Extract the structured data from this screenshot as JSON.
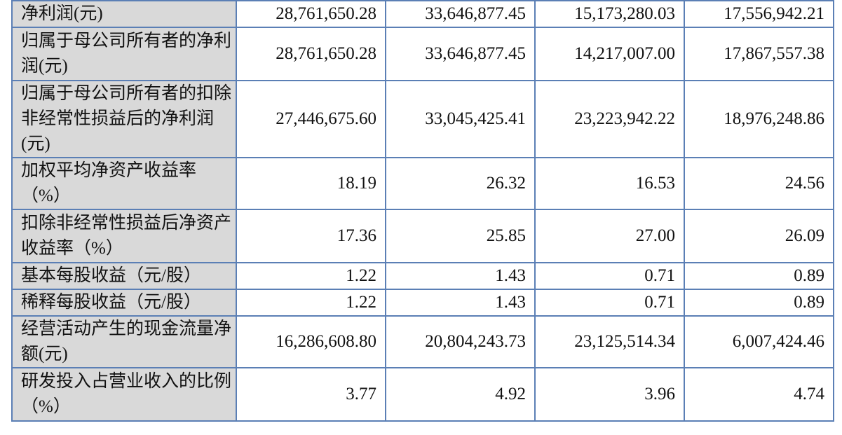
{
  "rows": [
    {
      "label": "净利润(元)",
      "values": [
        "28,761,650.28",
        "33,646,877.45",
        "15,173,280.03",
        "17,556,942.21"
      ]
    },
    {
      "label": "归属于母公司所有者的净利润(元)",
      "values": [
        "28,761,650.28",
        "33,646,877.45",
        "14,217,007.00",
        "17,867,557.38"
      ]
    },
    {
      "label": "归属于母公司所有者的扣除非经常性损益后的净利润(元)",
      "values": [
        "27,446,675.60",
        "33,045,425.41",
        "23,223,942.22",
        "18,976,248.86"
      ]
    },
    {
      "label": "加权平均净资产收益率（%）",
      "values": [
        "18.19",
        "26.32",
        "16.53",
        "24.56"
      ]
    },
    {
      "label": "扣除非经常性损益后净资产收益率（%）",
      "values": [
        "17.36",
        "25.85",
        "27.00",
        "26.09"
      ]
    },
    {
      "label": "基本每股收益（元/股）",
      "values": [
        "1.22",
        "1.43",
        "0.71",
        "0.89"
      ]
    },
    {
      "label": "稀释每股收益（元/股）",
      "values": [
        "1.22",
        "1.43",
        "0.71",
        "0.89"
      ]
    },
    {
      "label": "经营活动产生的现金流量净额(元)",
      "values": [
        "16,286,608.80",
        "20,804,243.73",
        "23,125,514.34",
        "6,007,424.46"
      ]
    },
    {
      "label": "研发投入占营业收入的比例（%）",
      "values": [
        "3.77",
        "4.92",
        "3.96",
        "4.74"
      ]
    }
  ]
}
